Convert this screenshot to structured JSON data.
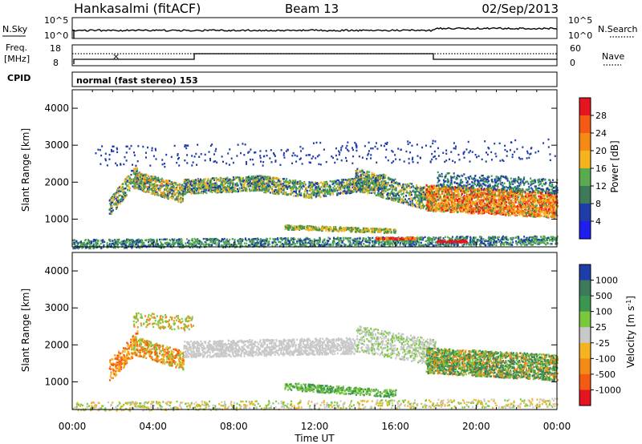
{
  "header": {
    "station": "Hankasalmi (fitACF)",
    "beam": "Beam 13",
    "date": "02/Sep/2013"
  },
  "noise_panel": {
    "left_label": "N.Sky",
    "right_label": "N.Search",
    "left_ticks": [
      "10^5",
      "10^0"
    ],
    "right_ticks": [
      "10^5",
      "10^0"
    ]
  },
  "freq_panel": {
    "left_label_1": "Freq.",
    "left_label_2": "[MHz]",
    "right_label": "Nave",
    "left_ticks": [
      "18",
      "8"
    ],
    "right_ticks": [
      "60",
      "0"
    ]
  },
  "cpid_panel": {
    "label": "CPID",
    "text": "normal (fast stereo) 153"
  },
  "x_axis": {
    "label": "Time UT",
    "ticks": [
      "00:00",
      "04:00",
      "08:00",
      "12:00",
      "16:00",
      "20:00",
      "00:00"
    ]
  },
  "colors": {
    "red": "#e6141e",
    "orange": "#f58a14",
    "yellow_orange": "#f5b41e",
    "green_light": "#7ac83c",
    "green": "#3c9650",
    "blue": "#1e3caa",
    "gray": "#c8c8c8"
  },
  "chart_data": [
    {
      "type": "heatmap",
      "title": "Power",
      "ylabel": "Slant Range [km]",
      "xlabel": "Time UT",
      "xlim_hours": [
        0,
        24
      ],
      "ylim": [
        250,
        4500
      ],
      "y_ticks": [
        "4000",
        "3000",
        "2000",
        "1000"
      ],
      "colorbar": {
        "label": "Power [dB]",
        "ticks": [
          "28",
          "24",
          "20",
          "16",
          "12",
          "8",
          "4"
        ],
        "colors": [
          "#e6141e",
          "#f55a14",
          "#f58a14",
          "#f5b41e",
          "#5aaa50",
          "#3c7a5a",
          "#1e3caa",
          "#1e1ef0"
        ]
      }
    },
    {
      "type": "heatmap",
      "title": "Velocity",
      "ylabel": "Slant Range [km]",
      "xlabel": "Time UT",
      "xlim_hours": [
        0,
        24
      ],
      "ylim": [
        250,
        4500
      ],
      "y_ticks": [
        "4000",
        "3000",
        "2000",
        "1000"
      ],
      "colorbar": {
        "label": "Velocity [m s",
        "label_sup": "-1",
        "label_end": "]",
        "ticks": [
          "1000",
          "500",
          "100",
          "25",
          "-25",
          "-100",
          "-500",
          "-1000"
        ],
        "colors": [
          "#1e3caa",
          "#3c7a5a",
          "#3c9650",
          "#7ac83c",
          "#c8c8c8",
          "#f5b41e",
          "#f58a14",
          "#f55a14",
          "#e6141e"
        ]
      }
    }
  ]
}
